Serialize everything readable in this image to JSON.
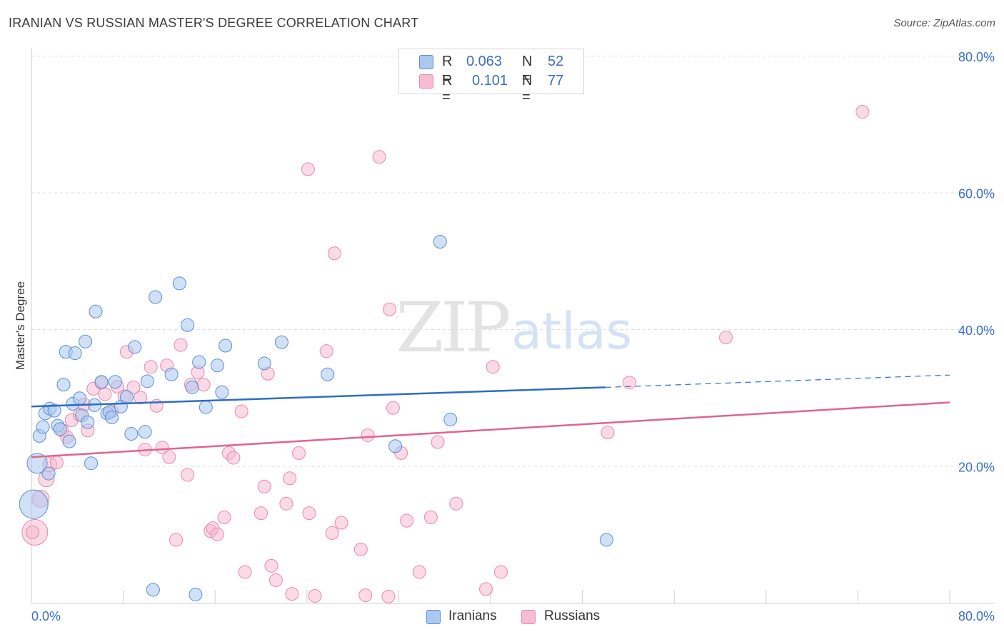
{
  "title": "IRANIAN VS RUSSIAN MASTER'S DEGREE CORRELATION CHART",
  "source": "Source: ZipAtlas.com",
  "watermark": {
    "zip": "ZIP",
    "atlas": "atlas"
  },
  "colors": {
    "iranians_fill": "#aac8f0",
    "iranians_stroke": "#5b8ed6",
    "iranians_line": "#2f6cc7",
    "russians_fill": "#f7bcd0",
    "russians_stroke": "#e68aaa",
    "russians_line": "#e0648e",
    "axis_text": "#3a6fc4",
    "grid": "#dddddd"
  },
  "legend_top": {
    "rows": [
      {
        "r_label": "R =",
        "r_value": "0.063",
        "n_label": "N =",
        "n_value": "52"
      },
      {
        "r_label": "R =",
        "r_value": "0.101",
        "n_label": "N =",
        "n_value": "77"
      }
    ]
  },
  "legend_bottom": {
    "items": [
      {
        "label": "Iranians"
      },
      {
        "label": "Russians"
      }
    ]
  },
  "chart_data": {
    "type": "scatter",
    "title": "IRANIAN VS RUSSIAN MASTER'S DEGREE CORRELATION CHART",
    "xlabel": "",
    "ylabel": "Master's Degree",
    "xlim": [
      0,
      80
    ],
    "ylim": [
      0,
      80
    ],
    "x_tick_labels": [
      "0.0%",
      "80.0%"
    ],
    "y_tick_labels": [
      "20.0%",
      "40.0%",
      "60.0%",
      "80.0%"
    ],
    "y_grid_values": [
      20,
      40,
      60,
      80
    ],
    "x_tick_values": [
      0,
      8,
      16,
      24,
      32,
      40,
      48,
      56,
      64,
      72,
      80
    ],
    "grid": true,
    "legend_position": "bottom",
    "series": [
      {
        "name": "Iranians",
        "r": 0.063,
        "n": 52,
        "trend": {
          "x0": 0,
          "y0": 28.8,
          "x1": 50,
          "y1": 31.6,
          "dashed_to_x": 80,
          "dashed_to_y": 33.4
        },
        "points": [
          [
            0.5,
            20.5,
            14
          ],
          [
            0.2,
            14.5,
            20
          ],
          [
            0.7,
            24.5,
            9
          ],
          [
            1.0,
            25.8,
            9
          ],
          [
            1.2,
            27.8,
            9
          ],
          [
            1.5,
            19.0,
            9
          ],
          [
            1.6,
            28.5,
            9
          ],
          [
            2.0,
            28.2,
            9
          ],
          [
            2.3,
            26.0,
            9
          ],
          [
            2.5,
            25.5,
            9
          ],
          [
            2.8,
            32.0,
            9
          ],
          [
            3.0,
            36.8,
            9
          ],
          [
            3.3,
            23.7,
            9
          ],
          [
            3.6,
            29.2,
            9
          ],
          [
            3.8,
            36.6,
            9
          ],
          [
            4.2,
            30.0,
            9
          ],
          [
            4.4,
            27.5,
            9
          ],
          [
            4.7,
            38.3,
            9
          ],
          [
            4.9,
            26.5,
            9
          ],
          [
            5.2,
            20.5,
            9
          ],
          [
            5.5,
            29.0,
            9
          ],
          [
            5.6,
            42.7,
            9
          ],
          [
            6.1,
            32.4,
            9
          ],
          [
            6.6,
            27.8,
            9
          ],
          [
            6.8,
            28.0,
            9
          ],
          [
            7.0,
            27.2,
            9
          ],
          [
            7.3,
            32.4,
            9
          ],
          [
            7.8,
            28.8,
            9
          ],
          [
            8.3,
            30.2,
            9
          ],
          [
            8.7,
            24.8,
            9
          ],
          [
            9.0,
            37.5,
            9
          ],
          [
            9.9,
            25.1,
            9
          ],
          [
            10.1,
            32.5,
            9
          ],
          [
            10.6,
            2.0,
            9
          ],
          [
            10.8,
            44.8,
            9
          ],
          [
            12.2,
            33.5,
            9
          ],
          [
            12.9,
            46.8,
            9
          ],
          [
            13.6,
            40.7,
            9
          ],
          [
            14.0,
            31.6,
            9
          ],
          [
            14.3,
            1.3,
            9
          ],
          [
            14.6,
            35.3,
            9
          ],
          [
            15.2,
            28.7,
            9
          ],
          [
            16.2,
            34.8,
            9
          ],
          [
            16.6,
            30.9,
            9
          ],
          [
            16.9,
            37.7,
            9
          ],
          [
            20.3,
            35.1,
            9
          ],
          [
            21.8,
            38.2,
            9
          ],
          [
            25.8,
            33.5,
            9
          ],
          [
            31.7,
            23.0,
            9
          ],
          [
            35.6,
            52.9,
            9
          ],
          [
            36.5,
            26.9,
            9
          ],
          [
            50.1,
            9.3,
            9
          ]
        ]
      },
      {
        "name": "Russians",
        "r": 0.101,
        "n": 77,
        "trend": {
          "x0": 0,
          "y0": 21.4,
          "x1": 80,
          "y1": 29.4
        },
        "points": [
          [
            0.3,
            10.4,
            18
          ],
          [
            0.8,
            15.3,
            12
          ],
          [
            1.3,
            18.2,
            11
          ],
          [
            1.6,
            20.3,
            10
          ],
          [
            2.2,
            20.6,
            9
          ],
          [
            2.7,
            25.3,
            9
          ],
          [
            3.1,
            24.3,
            9
          ],
          [
            3.5,
            26.8,
            9
          ],
          [
            4.2,
            27.6,
            9
          ],
          [
            4.6,
            29.1,
            9
          ],
          [
            4.9,
            25.3,
            9
          ],
          [
            5.4,
            31.4,
            9
          ],
          [
            6.1,
            32.3,
            9
          ],
          [
            6.4,
            30.6,
            9
          ],
          [
            7.0,
            28.1,
            9
          ],
          [
            7.5,
            31.7,
            9
          ],
          [
            8.1,
            30.3,
            9
          ],
          [
            8.3,
            36.8,
            9
          ],
          [
            8.9,
            31.6,
            9
          ],
          [
            9.5,
            30.1,
            9
          ],
          [
            9.9,
            22.5,
            9
          ],
          [
            10.4,
            34.6,
            9
          ],
          [
            10.9,
            28.9,
            9
          ],
          [
            11.4,
            22.8,
            9
          ],
          [
            11.8,
            34.8,
            9
          ],
          [
            12.0,
            21.4,
            9
          ],
          [
            12.6,
            9.3,
            9
          ],
          [
            13.0,
            37.8,
            9
          ],
          [
            13.6,
            18.8,
            9
          ],
          [
            13.9,
            32.0,
            9
          ],
          [
            14.5,
            33.8,
            9
          ],
          [
            15.0,
            32.0,
            9
          ],
          [
            15.6,
            10.6,
            9
          ],
          [
            15.8,
            11.0,
            9
          ],
          [
            16.2,
            10.1,
            9
          ],
          [
            16.8,
            12.6,
            9
          ],
          [
            17.2,
            22.0,
            9
          ],
          [
            17.6,
            21.3,
            9
          ],
          [
            18.3,
            28.1,
            9
          ],
          [
            18.6,
            4.6,
            9
          ],
          [
            20.0,
            13.2,
            9
          ],
          [
            20.3,
            17.1,
            9
          ],
          [
            20.6,
            33.6,
            9
          ],
          [
            20.9,
            5.5,
            9
          ],
          [
            21.3,
            3.4,
            9
          ],
          [
            22.2,
            14.6,
            9
          ],
          [
            22.5,
            18.3,
            9
          ],
          [
            22.7,
            1.4,
            9
          ],
          [
            23.3,
            22.0,
            9
          ],
          [
            24.1,
            63.5,
            9
          ],
          [
            24.2,
            13.2,
            9
          ],
          [
            24.7,
            1.1,
            9
          ],
          [
            25.7,
            36.9,
            9
          ],
          [
            26.2,
            10.3,
            9
          ],
          [
            26.4,
            51.2,
            9
          ],
          [
            27.0,
            11.8,
            9
          ],
          [
            28.7,
            7.9,
            9
          ],
          [
            29.1,
            1.2,
            9
          ],
          [
            29.3,
            24.6,
            9
          ],
          [
            30.3,
            65.3,
            9
          ],
          [
            31.1,
            1.0,
            9
          ],
          [
            31.2,
            43.0,
            9
          ],
          [
            31.5,
            28.6,
            9
          ],
          [
            32.2,
            22.0,
            9
          ],
          [
            32.7,
            12.1,
            9
          ],
          [
            33.8,
            4.6,
            9
          ],
          [
            34.8,
            12.6,
            9
          ],
          [
            35.4,
            23.6,
            9
          ],
          [
            37.0,
            14.6,
            9
          ],
          [
            39.6,
            2.1,
            9
          ],
          [
            40.2,
            34.6,
            9
          ],
          [
            40.9,
            4.6,
            9
          ],
          [
            50.2,
            25.0,
            9
          ],
          [
            52.1,
            32.3,
            9
          ],
          [
            60.5,
            38.9,
            9
          ],
          [
            72.4,
            71.9,
            9
          ],
          [
            0.1,
            10.4,
            9
          ]
        ]
      }
    ]
  }
}
